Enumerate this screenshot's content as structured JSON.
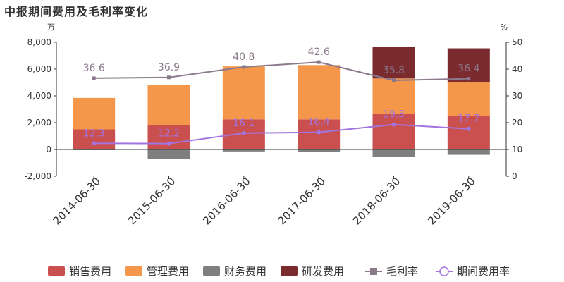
{
  "page": {
    "title": "中报期间费用及毛利率变化"
  },
  "chart_data": {
    "type": "bar",
    "stacked": true,
    "categories": [
      "2014-06-30",
      "2015-06-30",
      "2016-06-30",
      "2017-06-30",
      "2018-06-30",
      "2019-06-30"
    ],
    "left_axis": {
      "unit": "万",
      "min": -2000,
      "max": 8000,
      "ticks": [
        -2000,
        0,
        2000,
        4000,
        6000,
        8000
      ],
      "tick_labels": [
        "-2,000",
        "0",
        "2,000",
        "4,000",
        "6,000",
        "8,000"
      ]
    },
    "right_axis": {
      "unit": "%",
      "min": 0,
      "max": 50,
      "ticks": [
        0,
        10,
        20,
        30,
        40,
        50
      ],
      "tick_labels": [
        "0",
        "10",
        "20",
        "30",
        "40",
        "50"
      ]
    },
    "series": [
      {
        "name": "销售费用",
        "kind": "bar",
        "axis": "left",
        "color": "#c9504f",
        "values": [
          1500,
          1800,
          2250,
          2250,
          2650,
          2500
        ]
      },
      {
        "name": "管理费用",
        "kind": "bar",
        "axis": "left",
        "color": "#f5974b",
        "values": [
          2350,
          3000,
          3950,
          4050,
          2650,
          2550
        ]
      },
      {
        "name": "财务费用",
        "kind": "bar",
        "axis": "left",
        "color": "#7f7f7f",
        "values": [
          -50,
          -700,
          -150,
          -200,
          -550,
          -400
        ]
      },
      {
        "name": "研发费用",
        "kind": "bar",
        "axis": "left",
        "color": "#7b2a2e",
        "values": [
          0,
          0,
          0,
          0,
          2350,
          2500
        ]
      },
      {
        "name": "毛利率",
        "kind": "line",
        "axis": "right",
        "color": "#8a7a8c",
        "marker": "square",
        "values": [
          36.6,
          36.9,
          40.8,
          42.6,
          35.8,
          36.4
        ],
        "labels": [
          "36.6",
          "36.9",
          "40.8",
          "42.6",
          "35.8",
          "36.4"
        ]
      },
      {
        "name": "期间费用率",
        "kind": "line",
        "axis": "right",
        "color": "#a374e0",
        "marker": "circle",
        "values": [
          12.3,
          12.2,
          16.1,
          16.4,
          19.3,
          17.7
        ],
        "labels": [
          "12.3",
          "12.2",
          "16.1",
          "16.4",
          "19.3",
          "17.7"
        ]
      }
    ],
    "grid": false,
    "legend": "bottom"
  }
}
